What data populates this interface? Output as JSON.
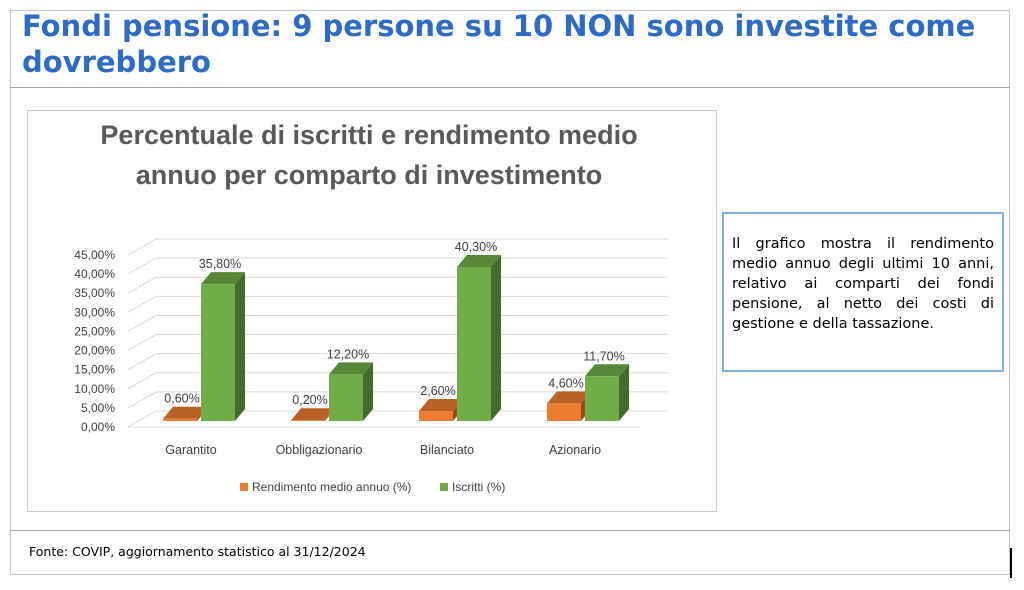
{
  "slide": {
    "title": "Fondi pensione: 9 persone su 10 NON sono investite come dovrebbero",
    "note": "Il grafico mostra il rendimento medio annuo degli ultimi 10 anni, relativo ai comparti dei fondi pensione, al netto dei costi di gestione e della tassazione.",
    "source": "Fonte: COVIP, aggiornamento statistico al 31/12/2024"
  },
  "chart_data": {
    "type": "bar",
    "title_lines": [
      "Percentuale di iscritti e rendimento medio",
      "annuo per comparto di investimento"
    ],
    "categories": [
      "Garantito",
      "Obbligazionario",
      "Bilanciato",
      "Azionario"
    ],
    "series": [
      {
        "name": "Rendimento medio annuo (%)",
        "values": [
          0.6,
          0.2,
          2.6,
          4.6
        ],
        "labels": [
          "0,60%",
          "0,20%",
          "2,60%",
          "4,60%"
        ],
        "color": "#ed7d31"
      },
      {
        "name": "Iscritti (%)",
        "values": [
          35.8,
          12.2,
          40.3,
          11.7
        ],
        "labels": [
          "35,80%",
          "12,20%",
          "40,30%",
          "11,70%"
        ],
        "color": "#70ad47"
      }
    ],
    "ylim": [
      0,
      45
    ],
    "yticks": [
      0,
      5,
      10,
      15,
      20,
      25,
      30,
      35,
      40,
      45
    ],
    "ytick_labels": [
      "0,00%",
      "5,00%",
      "10,00%",
      "15,00%",
      "20,00%",
      "25,00%",
      "30,00%",
      "35,00%",
      "40,00%",
      "45,00%"
    ],
    "grid": true,
    "legend_position": "bottom",
    "style": "3d-clustered-column"
  }
}
